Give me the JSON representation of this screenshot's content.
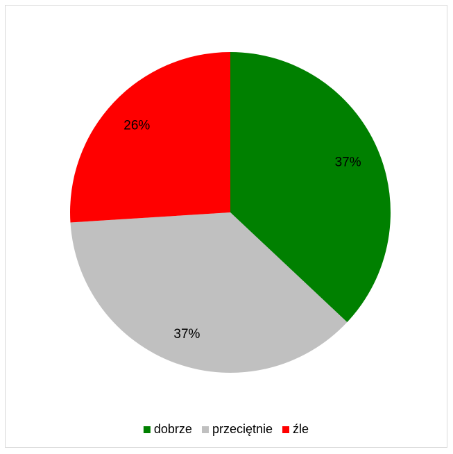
{
  "chart_data": {
    "type": "pie",
    "title": "",
    "legend_position": "bottom",
    "slices": [
      {
        "label": "dobrze",
        "value": 37,
        "display": "37%",
        "color": "#008000"
      },
      {
        "label": "przeciętnie",
        "value": 37,
        "display": "37%",
        "color": "#c0c0c0"
      },
      {
        "label": "źle",
        "value": 26,
        "display": "26%",
        "color": "#ff0000"
      }
    ]
  }
}
